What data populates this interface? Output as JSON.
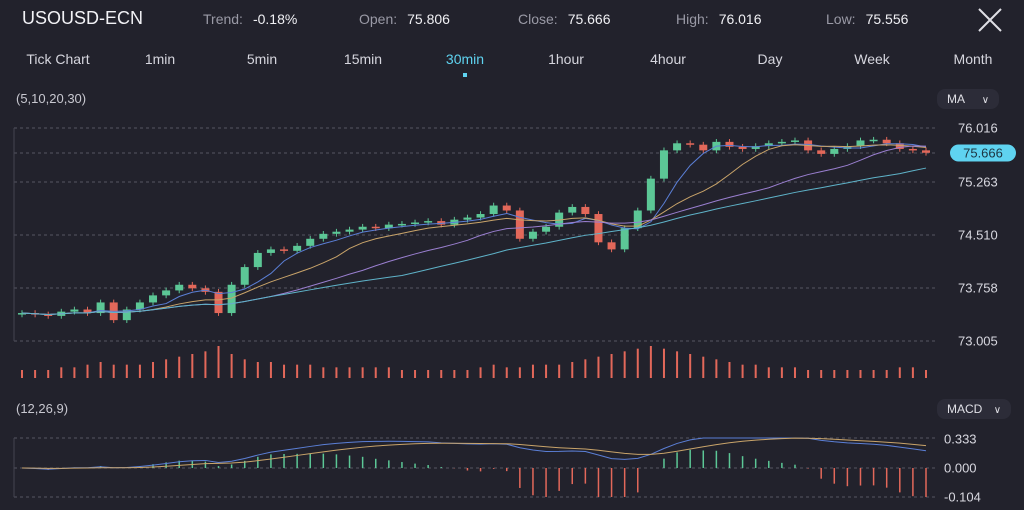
{
  "header": {
    "symbol": "USOUSD-ECN",
    "stats": [
      {
        "label": "Trend:",
        "value": "-0.18%"
      },
      {
        "label": "Open:",
        "value": "75.806"
      },
      {
        "label": "Close:",
        "value": "75.666"
      },
      {
        "label": "High:",
        "value": "76.016"
      },
      {
        "label": "Low:",
        "value": "75.556"
      }
    ],
    "close_icon": "close-x-icon"
  },
  "timeframes": {
    "items": [
      "Tick Chart",
      "1min",
      "5min",
      "15min",
      "30min",
      "1hour",
      "4hour",
      "Day",
      "Week",
      "Month"
    ],
    "selected": "30min"
  },
  "main_panel": {
    "indicator_params": "(5,10,20,30)",
    "indicator_select": "MA",
    "price_labels": [
      "76.016",
      "75.263",
      "74.510",
      "73.758",
      "73.005"
    ],
    "current_price": "75.666"
  },
  "macd_panel": {
    "indicator_params": "(12,26,9)",
    "indicator_select": "MACD",
    "labels": [
      "0.333",
      "0.000",
      "-0.104"
    ]
  },
  "colors": {
    "up": "#5cc796",
    "down": "#e3685a",
    "accent": "#5fd3f0",
    "ma5": "#5b7fd6",
    "ma10": "#c9a46a",
    "ma20": "#9a7fd0",
    "ma30": "#5fb3c9"
  },
  "chart_data": {
    "type": "candlestick",
    "y_range": [
      73.005,
      76.016
    ],
    "closes": [
      73.4,
      73.38,
      73.36,
      73.42,
      73.45,
      73.4,
      73.55,
      73.3,
      73.45,
      73.55,
      73.65,
      73.72,
      73.8,
      73.75,
      73.7,
      73.4,
      73.8,
      74.05,
      74.25,
      74.3,
      74.28,
      74.35,
      74.45,
      74.52,
      74.55,
      74.58,
      74.62,
      74.6,
      74.65,
      74.66,
      74.68,
      74.7,
      74.65,
      74.72,
      74.75,
      74.8,
      74.92,
      74.85,
      74.45,
      74.55,
      74.62,
      74.82,
      74.9,
      74.8,
      74.4,
      74.3,
      74.6,
      74.85,
      75.3,
      75.7,
      75.8,
      75.78,
      75.7,
      75.82,
      75.75,
      75.72,
      75.76,
      75.8,
      75.82,
      75.84,
      75.7,
      75.65,
      75.72,
      75.76,
      75.84,
      75.85,
      75.8,
      75.72,
      75.7,
      75.666
    ],
    "volumes": [
      3,
      3,
      3,
      4,
      4,
      5,
      6,
      5,
      5,
      5,
      6,
      7,
      8,
      9,
      10,
      12,
      9,
      7,
      6,
      6,
      5,
      5,
      5,
      4,
      4,
      4,
      4,
      4,
      4,
      3,
      3,
      3,
      3,
      3,
      3,
      4,
      5,
      4,
      4,
      5,
      5,
      5,
      6,
      7,
      8,
      9,
      10,
      11,
      12,
      11,
      10,
      9,
      8,
      7,
      6,
      5,
      5,
      4,
      4,
      4,
      3,
      3,
      3,
      3,
      3,
      3,
      3,
      4,
      4,
      3
    ],
    "moving_averages": [
      5,
      10,
      20,
      30
    ],
    "macd_params": [
      12,
      26,
      9
    ]
  }
}
